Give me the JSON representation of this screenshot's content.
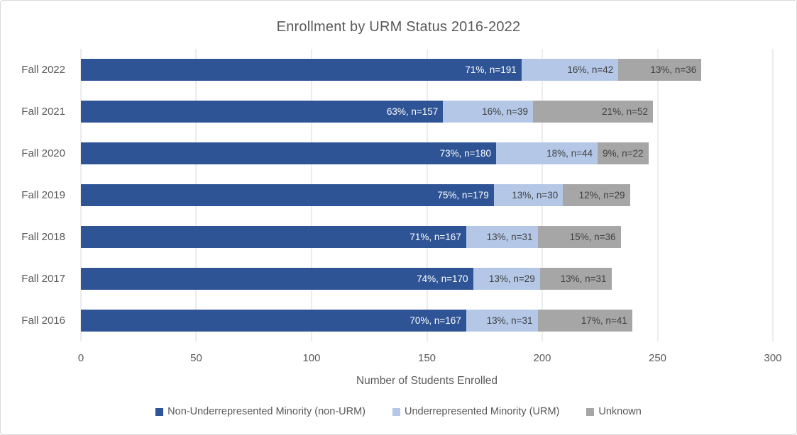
{
  "chart_title": "Enrollment by URM Status 2016-2022",
  "chart_data": {
    "type": "bar",
    "orientation": "horizontal",
    "stacked": true,
    "title": "Enrollment by URM Status 2016-2022",
    "categories": [
      "Fall 2022",
      "Fall 2021",
      "Fall 2020",
      "Fall 2019",
      "Fall 2018",
      "Fall 2017",
      "Fall 2016"
    ],
    "series": [
      {
        "name": "Non-Underrepresented Minority (non-URM)",
        "color": "#2F5496",
        "label_color": "#FFFFFF",
        "values": [
          191,
          157,
          180,
          179,
          167,
          170,
          167
        ],
        "labels": [
          "71%, n=191",
          "63%, n=157",
          "73%, n=180",
          "75%, n=179",
          "71%, n=167",
          "74%, n=170",
          "70%, n=167"
        ]
      },
      {
        "name": "Underrepresented Minority (URM)",
        "color": "#B4C7E7",
        "label_color": "#404040",
        "values": [
          42,
          39,
          44,
          30,
          31,
          29,
          31
        ],
        "labels": [
          "16%, n=42",
          "16%, n=39",
          "18%, n=44",
          "13%, n=30",
          "13%, n=31",
          "13%, n=29",
          "13%, n=31"
        ]
      },
      {
        "name": "Unknown",
        "color": "#A6A6A6",
        "label_color": "#404040",
        "values": [
          36,
          52,
          22,
          29,
          36,
          31,
          41
        ],
        "labels": [
          "13%, n=36",
          "21%, n=52",
          "9%, n=22",
          "12%, n=29",
          "15%, n=36",
          "13%, n=31",
          "17%, n=41"
        ]
      }
    ],
    "xlabel": "Number of Students Enrolled",
    "x_ticks": [
      0,
      50,
      100,
      150,
      200,
      250,
      300
    ],
    "xlim": [
      0,
      300
    ],
    "grid": true,
    "legend_position": "bottom",
    "gridline_color": "#D9D9D9",
    "text_color": "#595959"
  }
}
